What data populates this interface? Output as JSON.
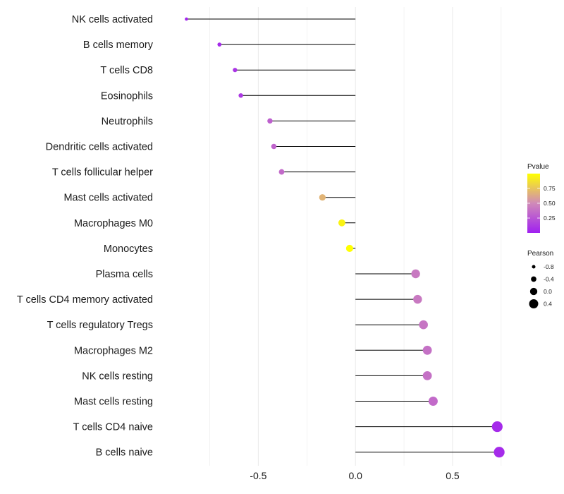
{
  "chart_data": {
    "type": "lollipop",
    "title": "",
    "xlabel": "",
    "ylabel": "",
    "xlim": [
      -0.995,
      1.03
    ],
    "xticks": [
      -0.5,
      0.0,
      0.5
    ],
    "xtick_labels": [
      "-0.5",
      "0.0",
      "0.5"
    ],
    "minor_gridlines": [
      -0.75,
      -0.25,
      0.25,
      0.75
    ],
    "baseline": 0,
    "categories": [
      "NK cells activated",
      "B cells memory",
      "T cells CD8",
      "Eosinophils",
      "Neutrophils",
      "Dendritic cells activated",
      "T cells follicular helper",
      "Mast cells activated",
      "Macrophages M0",
      "Monocytes",
      "Plasma cells",
      "T cells CD4 memory activated",
      "T cells regulatory  Tregs ",
      "Macrophages M2",
      "NK cells resting",
      "Mast cells resting",
      "T cells CD4 naive",
      "B cells naive"
    ],
    "pearson": [
      -0.87,
      -0.7,
      -0.62,
      -0.59,
      -0.44,
      -0.42,
      -0.38,
      -0.17,
      -0.07,
      -0.03,
      0.31,
      0.32,
      0.35,
      0.37,
      0.37,
      0.4,
      0.73,
      0.74
    ],
    "pvalue": [
      0.02,
      0.05,
      0.1,
      0.12,
      0.3,
      0.32,
      0.35,
      0.68,
      0.95,
      1.0,
      0.42,
      0.42,
      0.4,
      0.38,
      0.38,
      0.35,
      0.05,
      0.05
    ],
    "legend_pvalue": {
      "title": "Pvalue",
      "ticks": [
        0.25,
        0.5,
        0.75
      ],
      "tick_labels": [
        "0.25",
        "0.50",
        "0.75"
      ],
      "range": [
        0.0,
        1.0
      ],
      "colors": [
        "#a020f0",
        "#d08ab8",
        "#ffff00"
      ]
    },
    "legend_pearson": {
      "title": "Pearson",
      "values": [
        -0.8,
        -0.4,
        0.0,
        0.4
      ],
      "labels": [
        "-0.8",
        "-0.4",
        "0.0",
        "0.4"
      ]
    },
    "line_color": "#000000",
    "grid_color": "#ebebeb",
    "legend_position": "right"
  }
}
